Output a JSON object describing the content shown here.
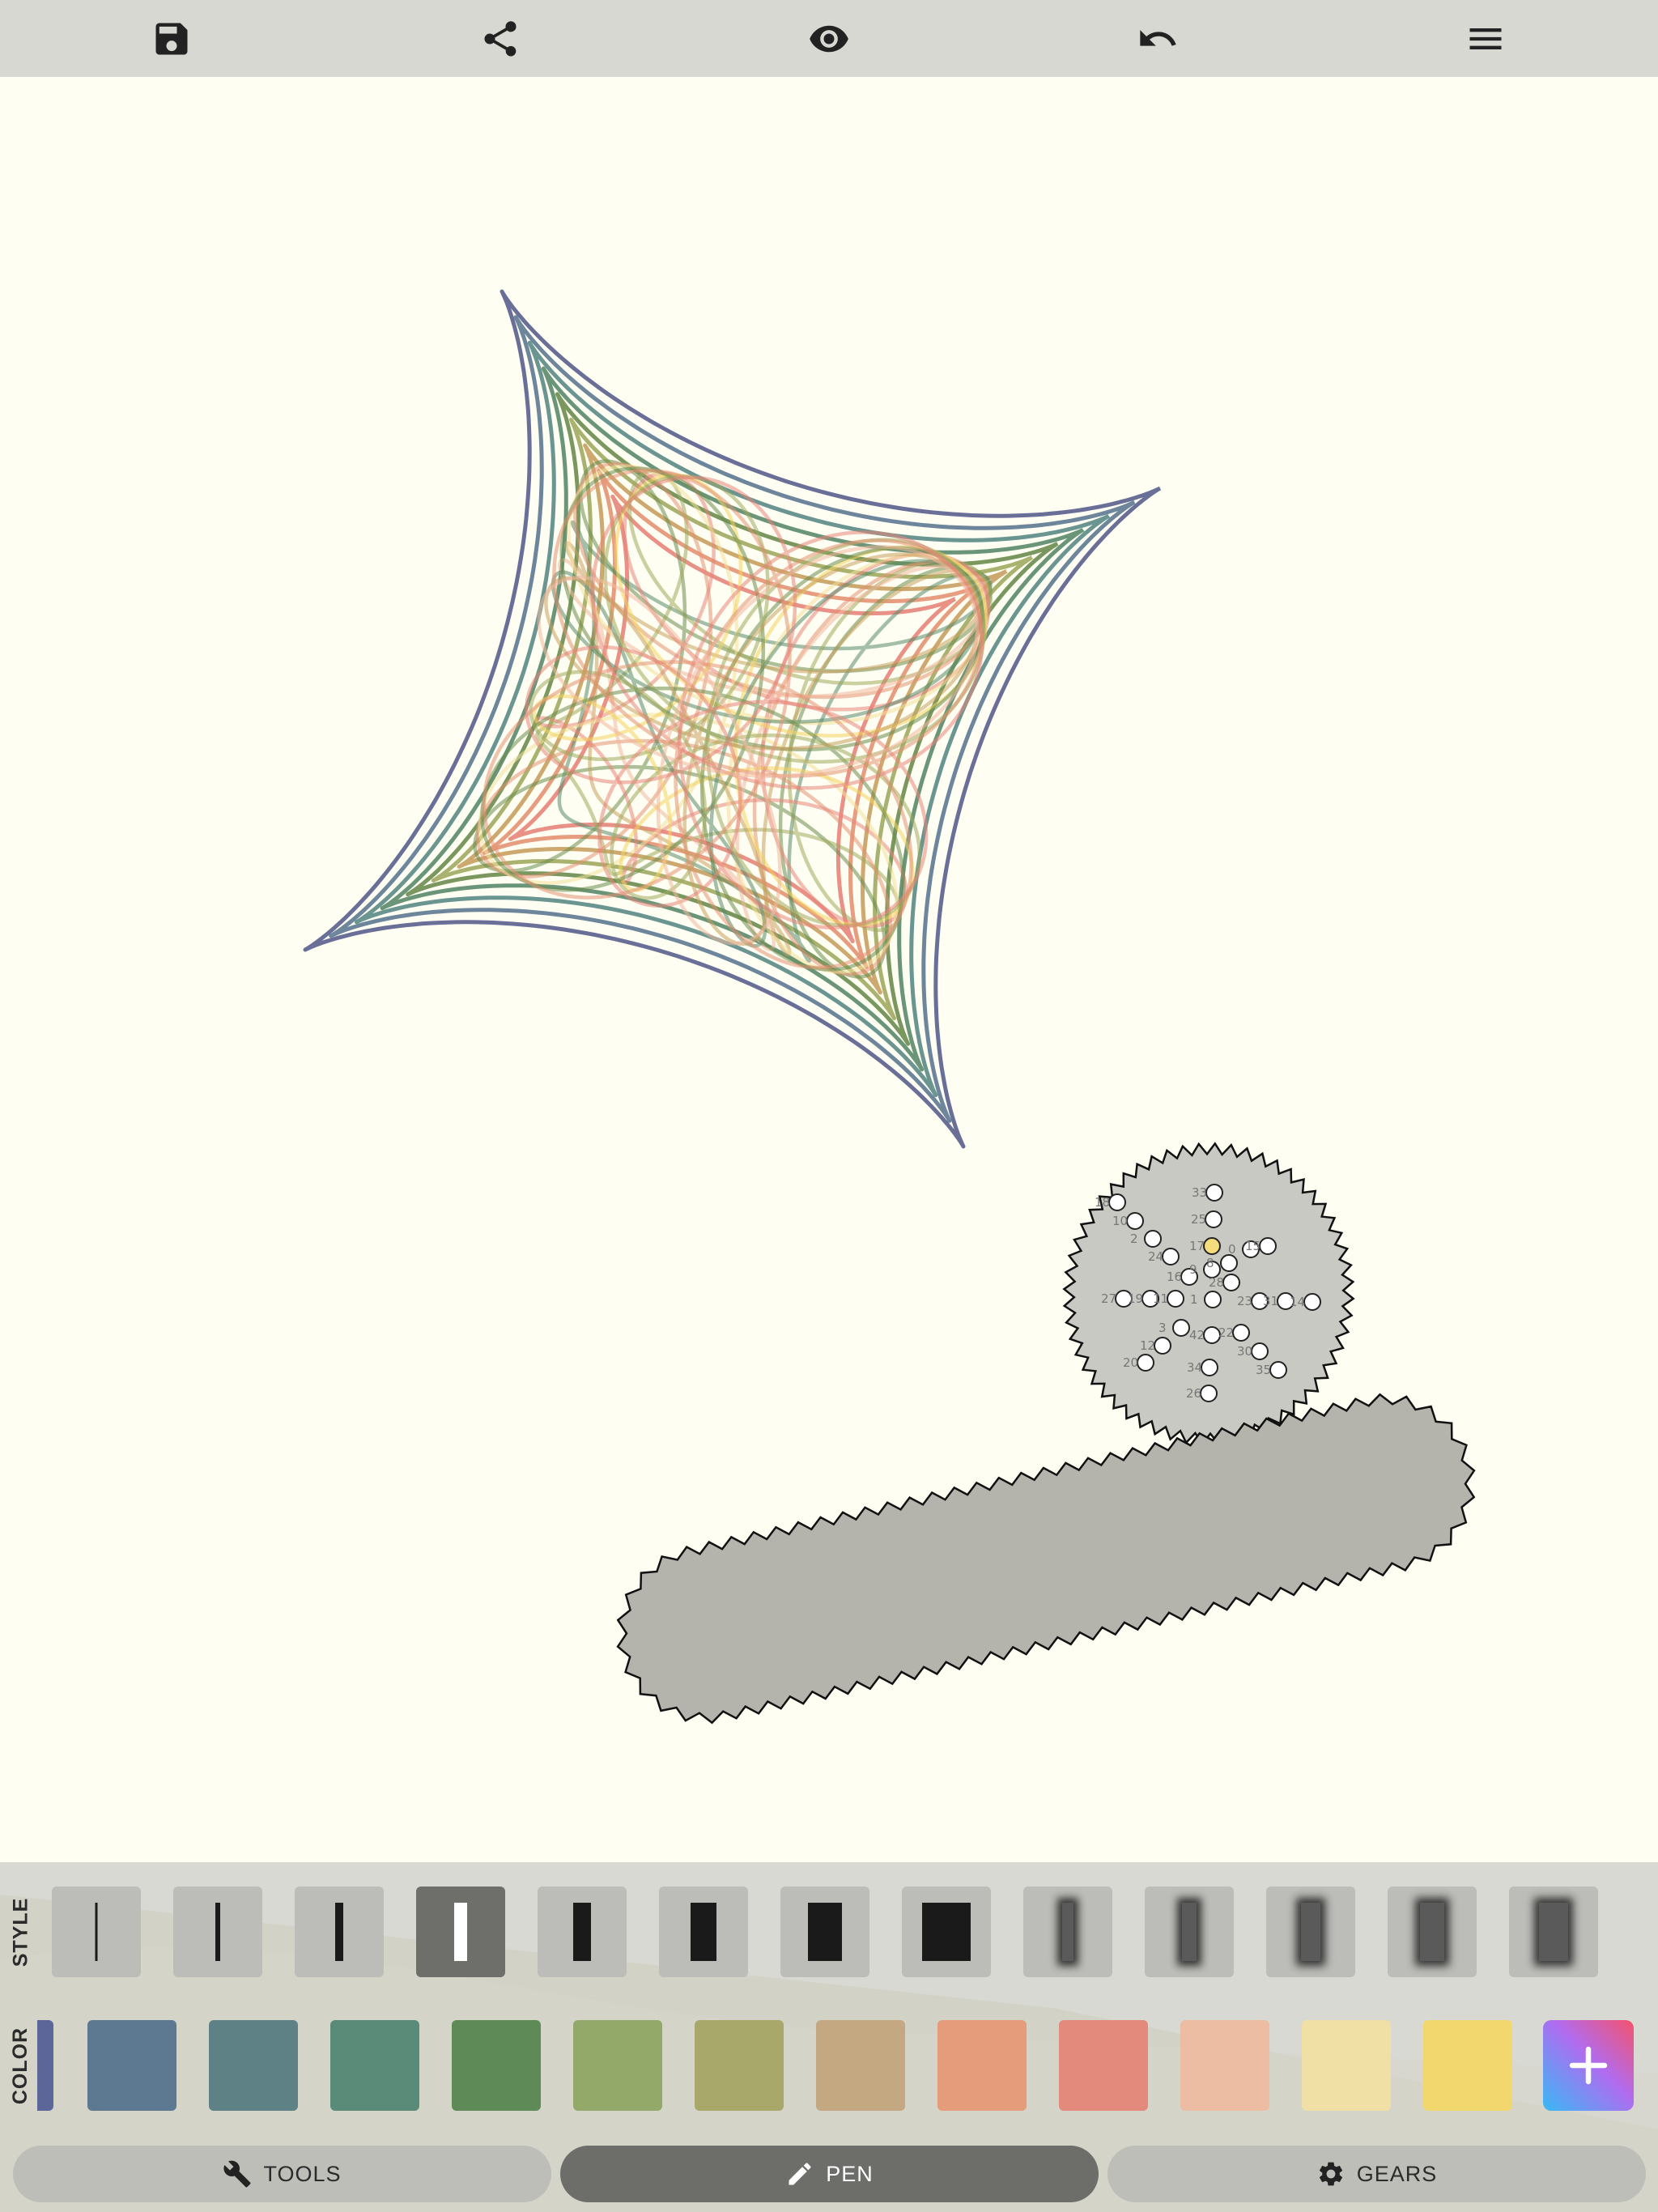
{
  "toolbar": {
    "icons": [
      "save-icon",
      "share-icon",
      "eye-icon",
      "undo-icon",
      "menu-icon"
    ]
  },
  "canvas": {
    "background": "#fefef2",
    "pattern_colors": [
      "#5a5f8e",
      "#5d7992",
      "#5a8a86",
      "#5a8a6b",
      "#6a8c4e",
      "#a0aa5f",
      "#c8a060",
      "#e49272",
      "#e7857a",
      "#f0b89f",
      "#f3e09a",
      "#f4d35e"
    ],
    "gear_labels": [
      "33",
      "25",
      "17",
      "9",
      "1",
      "42",
      "34",
      "26",
      "18",
      "10",
      "2",
      "24",
      "16",
      "8",
      "0",
      "15",
      "23",
      "31",
      "14",
      "22",
      "30",
      "35",
      "27",
      "19",
      "11",
      "3",
      "12",
      "20",
      "28",
      "36",
      "4",
      "13",
      "21",
      "29"
    ]
  },
  "style_panel": {
    "label": "STYLE",
    "selected_index": 3
  },
  "color_panel": {
    "label": "COLOR",
    "swatches": [
      "#5d7992",
      "#5d8185",
      "#5a8a78",
      "#5e8a58",
      "#93a96a",
      "#a8a86a",
      "#c4a882",
      "#e49c7a",
      "#e38a7d",
      "#ecbda2",
      "#f1e0a6",
      "#f2d76e"
    ],
    "selected_index": 11,
    "add_icon": "plus-icon"
  },
  "tabs": {
    "tools": "TOOLS",
    "pen": "PEN",
    "gears": "GEARS",
    "active": "pen"
  }
}
